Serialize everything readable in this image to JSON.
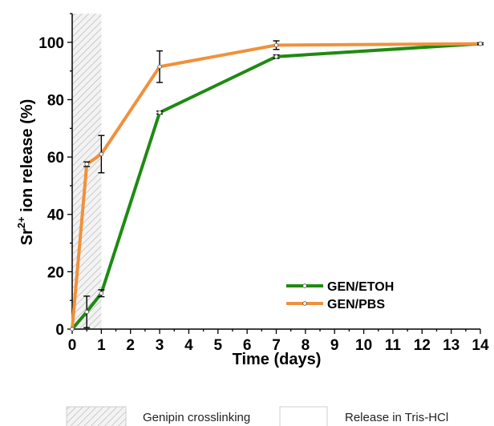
{
  "chart_data": {
    "type": "line",
    "xlabel": "Time (days)",
    "ylabel_parts": {
      "base": "Sr",
      "sup": "2+",
      "rest": " ion release (%)"
    },
    "xlim": [
      0,
      14
    ],
    "ylim": [
      0,
      110
    ],
    "x_ticks": [
      0,
      1,
      2,
      3,
      4,
      5,
      6,
      7,
      8,
      9,
      10,
      11,
      12,
      13,
      14
    ],
    "y_ticks": [
      0,
      20,
      40,
      60,
      80,
      100
    ],
    "grid": false,
    "legend_position": "bottom-right",
    "shaded_region": {
      "x_range": [
        0,
        1
      ],
      "label": "Genipin crosslinking"
    },
    "unshaded_region": {
      "label": "Release in Tris-HCl"
    },
    "series": [
      {
        "name": "GEN/ETOH",
        "color": "#1f8a12",
        "x": [
          0,
          0.5,
          1,
          3,
          7,
          14
        ],
        "y": [
          0,
          6,
          12.5,
          75.5,
          95,
          99.5
        ],
        "err": [
          0,
          5.5,
          1.2,
          0.5,
          0.6,
          0.3
        ]
      },
      {
        "name": "GEN/PBS",
        "color": "#f0913c",
        "x": [
          0,
          0.5,
          1,
          3,
          7,
          14
        ],
        "y": [
          0,
          57.5,
          61,
          91.5,
          99,
          99.5
        ],
        "err": [
          0,
          0.8,
          6.5,
          5.5,
          1.5,
          0.3
        ]
      }
    ]
  }
}
